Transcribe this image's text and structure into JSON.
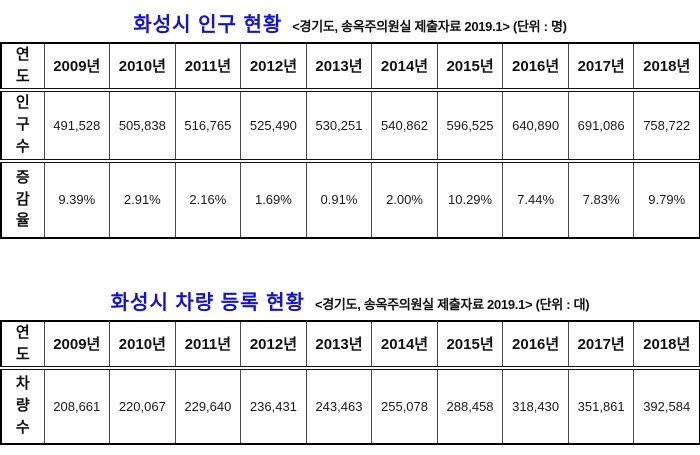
{
  "page": {
    "background": "#ffffff",
    "title_color": "#1414c8"
  },
  "table1": {
    "title": "화성시 인구 현황",
    "source_note": "<경기도, 송옥주의원실 제출자료 2019.1> (단위 : 명)",
    "row_header_label": "연\n도",
    "years": [
      "2009년",
      "2010년",
      "2011년",
      "2012년",
      "2013년",
      "2014년",
      "2015년",
      "2016년",
      "2017년",
      "2018년"
    ],
    "rows": [
      {
        "label": "인\n구\n수",
        "values": [
          "491,528",
          "505,838",
          "516,765",
          "525,490",
          "530,251",
          "540,862",
          "596,525",
          "640,890",
          "691,086",
          "758,722"
        ]
      },
      {
        "label": "증\n감\n율",
        "values": [
          "9.39%",
          "2.91%",
          "2.16%",
          "1.69%",
          "0.91%",
          "2.00%",
          "10.29%",
          "7.44%",
          "7.83%",
          "9.79%"
        ]
      }
    ]
  },
  "table2": {
    "title": "화성시 차량 등록 현황",
    "source_note": "<경기도, 송옥주의원실 제출자료 2019.1> (단위 : 대)",
    "row_header_label": "연\n도",
    "years": [
      "2009년",
      "2010년",
      "2011년",
      "2012년",
      "2013년",
      "2014년",
      "2015년",
      "2016년",
      "2017년",
      "2018년"
    ],
    "rows": [
      {
        "label": "차\n량\n수",
        "values": [
          "208,661",
          "220,067",
          "229,640",
          "236,431",
          "243,463",
          "255,078",
          "288,458",
          "318,430",
          "351,861",
          "392,584"
        ]
      }
    ]
  },
  "chart_data": [
    {
      "type": "table",
      "title": "화성시 인구 현황",
      "source": "경기도, 송옥주의원실 제출자료 2019.1",
      "unit": "명",
      "categories": [
        "2009년",
        "2010년",
        "2011년",
        "2012년",
        "2013년",
        "2014년",
        "2015년",
        "2016년",
        "2017년",
        "2018년"
      ],
      "series": [
        {
          "name": "인구수",
          "values": [
            491528,
            505838,
            516765,
            525490,
            530251,
            540862,
            596525,
            640890,
            691086,
            758722
          ]
        },
        {
          "name": "증감율(%)",
          "values": [
            9.39,
            2.91,
            2.16,
            1.69,
            0.91,
            2.0,
            10.29,
            7.44,
            7.83,
            9.79
          ]
        }
      ]
    },
    {
      "type": "table",
      "title": "화성시 차량 등록 현황",
      "source": "경기도, 송옥주의원실 제출자료 2019.1",
      "unit": "대",
      "categories": [
        "2009년",
        "2010년",
        "2011년",
        "2012년",
        "2013년",
        "2014년",
        "2015년",
        "2016년",
        "2017년",
        "2018년"
      ],
      "series": [
        {
          "name": "차량수",
          "values": [
            208661,
            220067,
            229640,
            236431,
            243463,
            255078,
            288458,
            318430,
            351861,
            392584
          ]
        }
      ]
    }
  ]
}
